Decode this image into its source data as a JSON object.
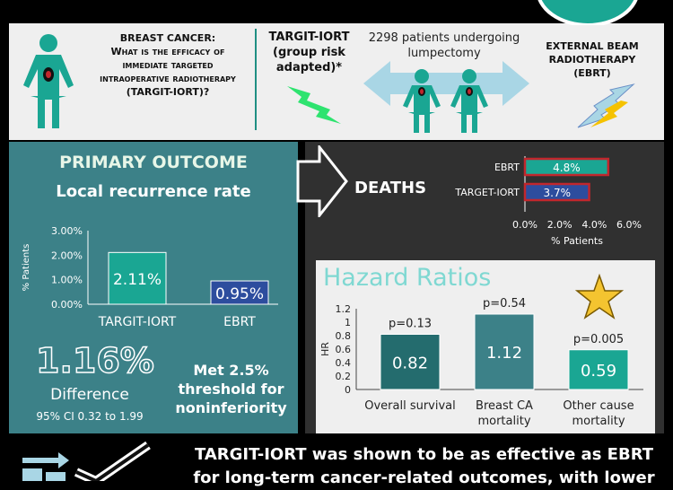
{
  "header": {
    "question_title": "BREAST CANCER:",
    "question_body": "What is the efficacy of immediate targeted intraoperative radiotherapy (TARGIT-IORT)?",
    "targit_label": "TARGIT-IORT (group risk adapted)*",
    "patients_label": "2298 patients undergoing lumpectomy",
    "ebrt_label": "EXTERNAL BEAM RADIOTHERAPY (EBRT)"
  },
  "primary": {
    "title": "PRIMARY OUTCOME",
    "subtitle": "Local recurrence rate",
    "difference_value": "1.16%",
    "difference_label": "Difference",
    "ci_label": "95% CI 0.32 to 1.99",
    "threshold_text": "Met 2.5% threshold for noninferiority"
  },
  "deaths": {
    "title": "DEATHS"
  },
  "hazard": {
    "title": "Hazard Ratios"
  },
  "footer": {
    "line1": "TARGIT-IORT was shown to be as effective as EBRT",
    "line2": "for long-term cancer-related outcomes, with lower"
  },
  "colors": {
    "teal": "#1aa693",
    "navy": "#2d4d9e",
    "panel_teal": "#3c8188",
    "dark_teal": "#246c6e",
    "red_outline": "#c1272d",
    "star": "#f4c430"
  },
  "chart_data": [
    {
      "type": "bar",
      "categories": [
        "TARGIT-IORT",
        "EBRT"
      ],
      "values": [
        2.11,
        0.95
      ],
      "data_labels": [
        "2.11%",
        "0.95%"
      ],
      "ylabel": "% Patients",
      "yticks": [
        "0.00%",
        "1.00%",
        "2.00%",
        "3.00%"
      ],
      "ylim": [
        0,
        3
      ]
    },
    {
      "type": "bar",
      "orientation": "horizontal",
      "categories": [
        "EBRT",
        "TARGET-IORT"
      ],
      "values": [
        4.8,
        3.7
      ],
      "data_labels": [
        "4.8%",
        "3.7%"
      ],
      "xlabel": "% Patients",
      "xticks": [
        "0.0%",
        "2.0%",
        "4.0%",
        "6.0%"
      ],
      "xlim": [
        0,
        6
      ]
    },
    {
      "type": "bar",
      "categories": [
        "Overall survival",
        "Breast CA mortality",
        "Other cause mortality"
      ],
      "values": [
        0.82,
        1.12,
        0.59
      ],
      "data_labels": [
        "0.82",
        "1.12",
        "0.59"
      ],
      "p_values": [
        "p=0.13",
        "p=0.54",
        "p=0.005"
      ],
      "ylabel": "HR",
      "yticks": [
        "0",
        "0.2",
        "0.4",
        "0.6",
        "0.8",
        "1",
        "1.2"
      ],
      "ylim": [
        0,
        1.2
      ]
    }
  ]
}
